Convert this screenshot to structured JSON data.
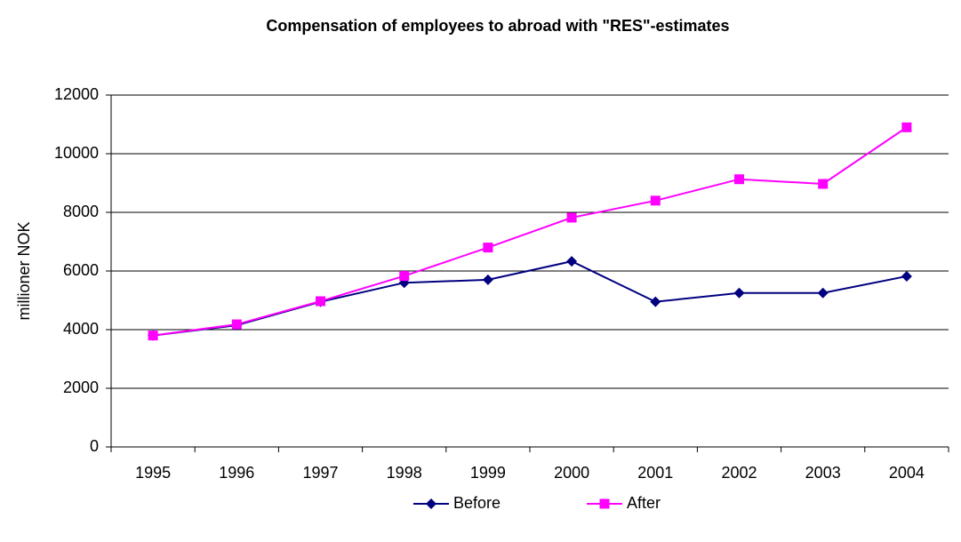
{
  "chart_data": {
    "type": "line",
    "title": "Compensation of employees to abroad with \"RES\"-estimates",
    "y_label": "millioner NOK",
    "categories": [
      "1995",
      "1996",
      "1997",
      "1998",
      "1999",
      "2000",
      "2001",
      "2002",
      "2003",
      "2004"
    ],
    "series": [
      {
        "name": "Before",
        "color": "#000080",
        "marker": "diamond",
        "values": [
          3800,
          4150,
          4950,
          5600,
          5700,
          6330,
          4950,
          5250,
          5250,
          5820
        ]
      },
      {
        "name": "After",
        "color": "#ff00ff",
        "marker": "square",
        "values": [
          3800,
          4180,
          4970,
          5830,
          6800,
          7820,
          8400,
          9130,
          8970,
          10900
        ]
      }
    ],
    "ylim": [
      0,
      12000
    ],
    "yticks": [
      0,
      2000,
      4000,
      6000,
      8000,
      10000,
      12000
    ],
    "grid": true,
    "legend": "bottom"
  }
}
